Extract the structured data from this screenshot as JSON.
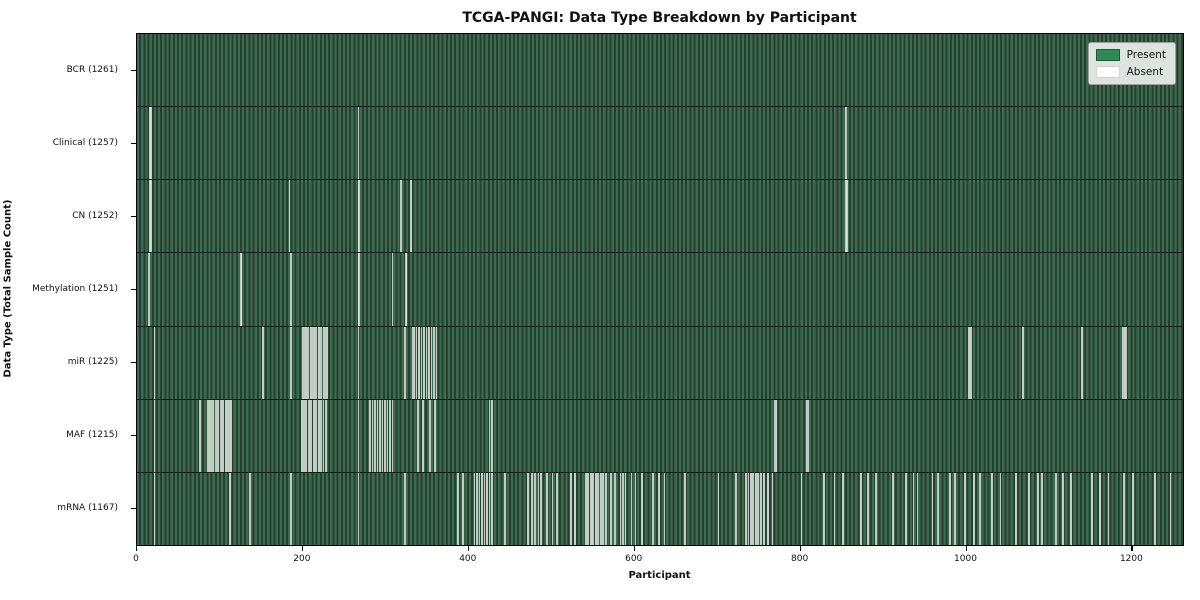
{
  "chart_data": {
    "type": "heatmap",
    "title": "TCGA-PANGI: Data Type Breakdown by Participant",
    "xlabel": "Participant",
    "ylabel": "Data Type (Total Sample Count)",
    "x_ticks": [
      0,
      200,
      400,
      600,
      800,
      1000,
      1200
    ],
    "xlim": [
      0,
      1261
    ],
    "total_participants": 1261,
    "grid": false,
    "legend_position": "upper right",
    "legend": [
      {
        "label": "Present",
        "color": "#2e8b57"
      },
      {
        "label": "Absent",
        "color": "#ffffff"
      }
    ],
    "colors": {
      "present": "#2e8b57",
      "absent": "#ffffff",
      "row_fill_light": "#3e6a53",
      "row_fill_dark": "#25412f",
      "plot_border": "#000000",
      "legend_bg": "#dde4dd"
    },
    "note": "Each row is a data type; green bar = sample present for that participant, light stripe = absent. Absent positions are approximate participant indices read from the image.",
    "rows": [
      {
        "label": "BCR (1261)",
        "data_type": "BCR",
        "present_count": 1261,
        "absent_participants": []
      },
      {
        "label": "Clinical (1257)",
        "data_type": "Clinical",
        "present_count": 1257,
        "absent_participants": [
          15,
          16,
          266,
          854
        ]
      },
      {
        "label": "CN (1252)",
        "data_type": "CN",
        "present_count": 1252,
        "absent_participants": [
          15,
          16,
          183,
          266,
          267,
          317,
          329,
          854,
          855
        ]
      },
      {
        "label": "Methylation (1251)",
        "data_type": "Methylation",
        "present_count": 1251,
        "absent_participants": [
          13,
          14,
          124,
          125,
          185,
          266,
          267,
          307,
          323,
          324
        ]
      },
      {
        "label": "miR (1225)",
        "data_type": "miR",
        "present_count": 1225,
        "absent_participants": [
          20,
          151,
          185,
          199,
          201,
          203,
          205,
          208,
          210,
          212,
          215,
          218,
          221,
          224,
          226,
          228,
          266,
          322,
          331,
          333,
          336,
          339,
          342,
          345,
          348,
          351,
          354,
          357,
          360,
          1002,
          1004,
          1067,
          1138,
          1188,
          1190,
          1192
        ]
      },
      {
        "label": "MAF (1215)",
        "data_type": "MAF",
        "present_count": 1215,
        "absent_participants": [
          20,
          75,
          84,
          86,
          88,
          91,
          94,
          97,
          100,
          103,
          106,
          108,
          110,
          112,
          198,
          200,
          203,
          206,
          209,
          212,
          215,
          218,
          221,
          224,
          227,
          266,
          280,
          283,
          286,
          289,
          292,
          295,
          298,
          301,
          304,
          307,
          338,
          344,
          352,
          358,
          424,
          427,
          768,
          770,
          806,
          808
        ]
      },
      {
        "label": "mRNA (1167)",
        "data_type": "mRNA",
        "present_count": 1167,
        "absent_participants": [
          20,
          111,
          135,
          185,
          266,
          322,
          386,
          392,
          406,
          409,
          412,
          415,
          418,
          421,
          424,
          427,
          443,
          470,
          475,
          479,
          483,
          486,
          493,
          500,
          505,
          522,
          527,
          540,
          543,
          546,
          549,
          552,
          555,
          558,
          561,
          564,
          570,
          575,
          582,
          585,
          588,
          595,
          600,
          608,
          621,
          628,
          635,
          660,
          700,
          721,
          733,
          736,
          739,
          742,
          745,
          748,
          751,
          755,
          760,
          765,
          800,
          827,
          840,
          850,
          872,
          880,
          890,
          910,
          926,
          935,
          940,
          958,
          965,
          979,
          985,
          997,
          1008,
          1015,
          1030,
          1040,
          1059,
          1074,
          1085,
          1090,
          1107,
          1115,
          1125,
          1150,
          1160,
          1170,
          1189,
          1200,
          1226,
          1245
        ]
      }
    ]
  }
}
